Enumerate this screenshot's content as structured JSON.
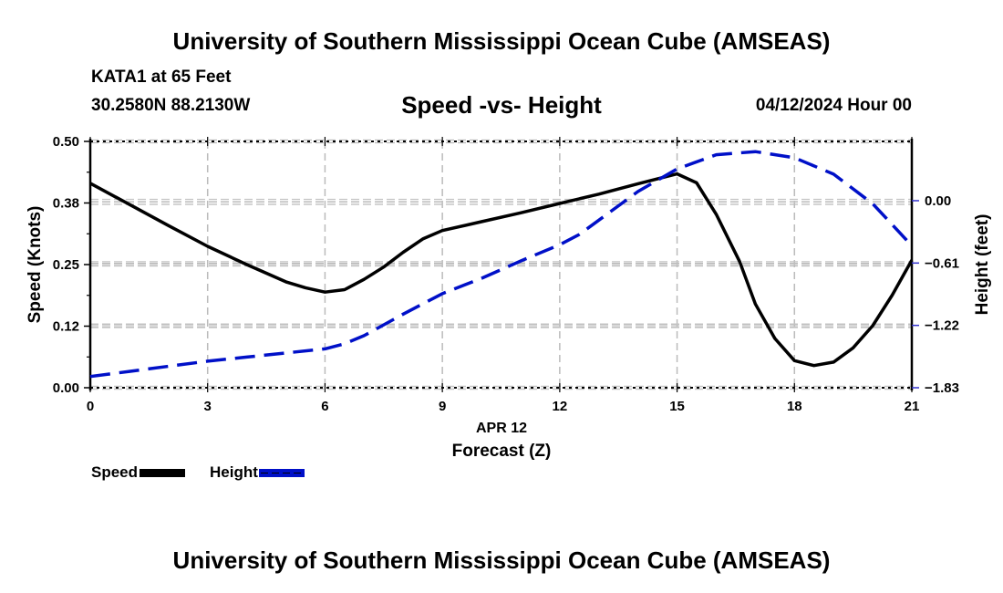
{
  "header": {
    "main_title": "University of Southern Mississippi Ocean Cube (AMSEAS)",
    "station": "KATA1 at 65 Feet",
    "coordinates": "30.2580N  88.2130W",
    "subtitle": "Speed -vs- Height",
    "datestamp": "04/12/2024 Hour 00"
  },
  "footer": {
    "title": "University of Southern Mississippi Ocean Cube (AMSEAS)"
  },
  "legend": {
    "items": [
      {
        "label": "Speed",
        "color": "#000000",
        "style": "solid"
      },
      {
        "label": "Height",
        "color": "#0010c8",
        "style": "dashed"
      }
    ]
  },
  "chart_data": {
    "type": "line",
    "title": "Speed -vs- Height",
    "xlabel": "Forecast (Z)",
    "xlabel_date": "APR 12",
    "ylabel": "Speed (Knots)",
    "ylabel_right": "Height (feet)",
    "xlim": [
      0,
      21
    ],
    "ylim": [
      0.0,
      0.5
    ],
    "ylim_right": [
      -1.83,
      0.58
    ],
    "x_ticks": [
      0,
      3,
      6,
      9,
      12,
      15,
      18,
      21
    ],
    "x_tick_labels": [
      "0",
      "3",
      "6",
      "9",
      "12",
      "15",
      "18",
      "21"
    ],
    "y_ticks": [
      0.0,
      0.125,
      0.25,
      0.375,
      0.5
    ],
    "y_tick_labels": [
      "0.00",
      "0.12",
      "0.25",
      "0.38",
      "0.50"
    ],
    "y_right_ticks": [
      -1.83,
      -1.22,
      -0.61,
      0.0
    ],
    "y_right_tick_labels": [
      "−1.83",
      "−1.22",
      "−0.61",
      "0.00"
    ],
    "grid": true,
    "legend_position": "bottom-left",
    "series": [
      {
        "name": "Speed",
        "axis": "left",
        "color": "#000000",
        "dash": "solid",
        "x": [
          0,
          1,
          2,
          3,
          4,
          5,
          5.5,
          6,
          6.5,
          7,
          7.5,
          8,
          8.5,
          9,
          10,
          11,
          12,
          13,
          14,
          15,
          15.5,
          16,
          16.6,
          17,
          17.5,
          18,
          18.5,
          19,
          19.5,
          20,
          20.5,
          21
        ],
        "values": [
          0.415,
          0.372,
          0.329,
          0.287,
          0.25,
          0.215,
          0.203,
          0.194,
          0.199,
          0.22,
          0.245,
          0.275,
          0.302,
          0.319,
          0.337,
          0.355,
          0.374,
          0.393,
          0.414,
          0.434,
          0.416,
          0.352,
          0.256,
          0.17,
          0.1,
          0.055,
          0.045,
          0.052,
          0.081,
          0.126,
          0.188,
          0.259
        ]
      },
      {
        "name": "Height",
        "axis": "right",
        "color": "#0010c8",
        "dash": "dashed",
        "x": [
          0,
          1,
          2,
          3,
          4,
          5,
          6,
          6.5,
          7,
          8,
          9,
          10,
          11,
          12,
          12.5,
          13,
          14,
          15,
          16,
          17,
          18,
          19,
          20,
          21
        ],
        "values": [
          -1.72,
          -1.67,
          -1.62,
          -1.57,
          -1.53,
          -1.49,
          -1.45,
          -1.4,
          -1.32,
          -1.11,
          -0.91,
          -0.76,
          -0.59,
          -0.43,
          -0.33,
          -0.19,
          0.09,
          0.31,
          0.45,
          0.48,
          0.42,
          0.26,
          -0.03,
          -0.44
        ]
      }
    ]
  }
}
